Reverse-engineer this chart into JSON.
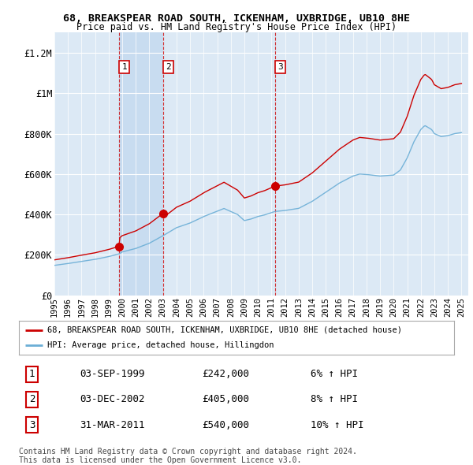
{
  "title": "68, BREAKSPEAR ROAD SOUTH, ICKENHAM, UXBRIDGE, UB10 8HE",
  "subtitle": "Price paid vs. HM Land Registry's House Price Index (HPI)",
  "legend_line1": "68, BREAKSPEAR ROAD SOUTH, ICKENHAM, UXBRIDGE, UB10 8HE (detached house)",
  "legend_line2": "HPI: Average price, detached house, Hillingdon",
  "footer": "Contains HM Land Registry data © Crown copyright and database right 2024.\nThis data is licensed under the Open Government Licence v3.0.",
  "sale_prices": [
    242000,
    405000,
    540000
  ],
  "sale_labels": [
    "1",
    "2",
    "3"
  ],
  "sale_table": [
    [
      "1",
      "03-SEP-1999",
      "£242,000",
      "6% ↑ HPI"
    ],
    [
      "2",
      "03-DEC-2002",
      "£405,000",
      "8% ↑ HPI"
    ],
    [
      "3",
      "31-MAR-2011",
      "£540,000",
      "10% ↑ HPI"
    ]
  ],
  "hpi_color": "#6baed6",
  "price_color": "#cc0000",
  "vline_color": "#cc0000",
  "background_color": "#dce9f5",
  "shade_color": "#c8dcf0",
  "ylim": [
    0,
    1300000
  ],
  "yticks": [
    0,
    200000,
    400000,
    600000,
    800000,
    1000000,
    1200000
  ],
  "ytick_labels": [
    "£0",
    "£200K",
    "£400K",
    "£600K",
    "£800K",
    "£1M",
    "£1.2M"
  ],
  "sale_year_1": 1999.75,
  "sale_year_2": 2003.0,
  "sale_year_3": 2011.25
}
